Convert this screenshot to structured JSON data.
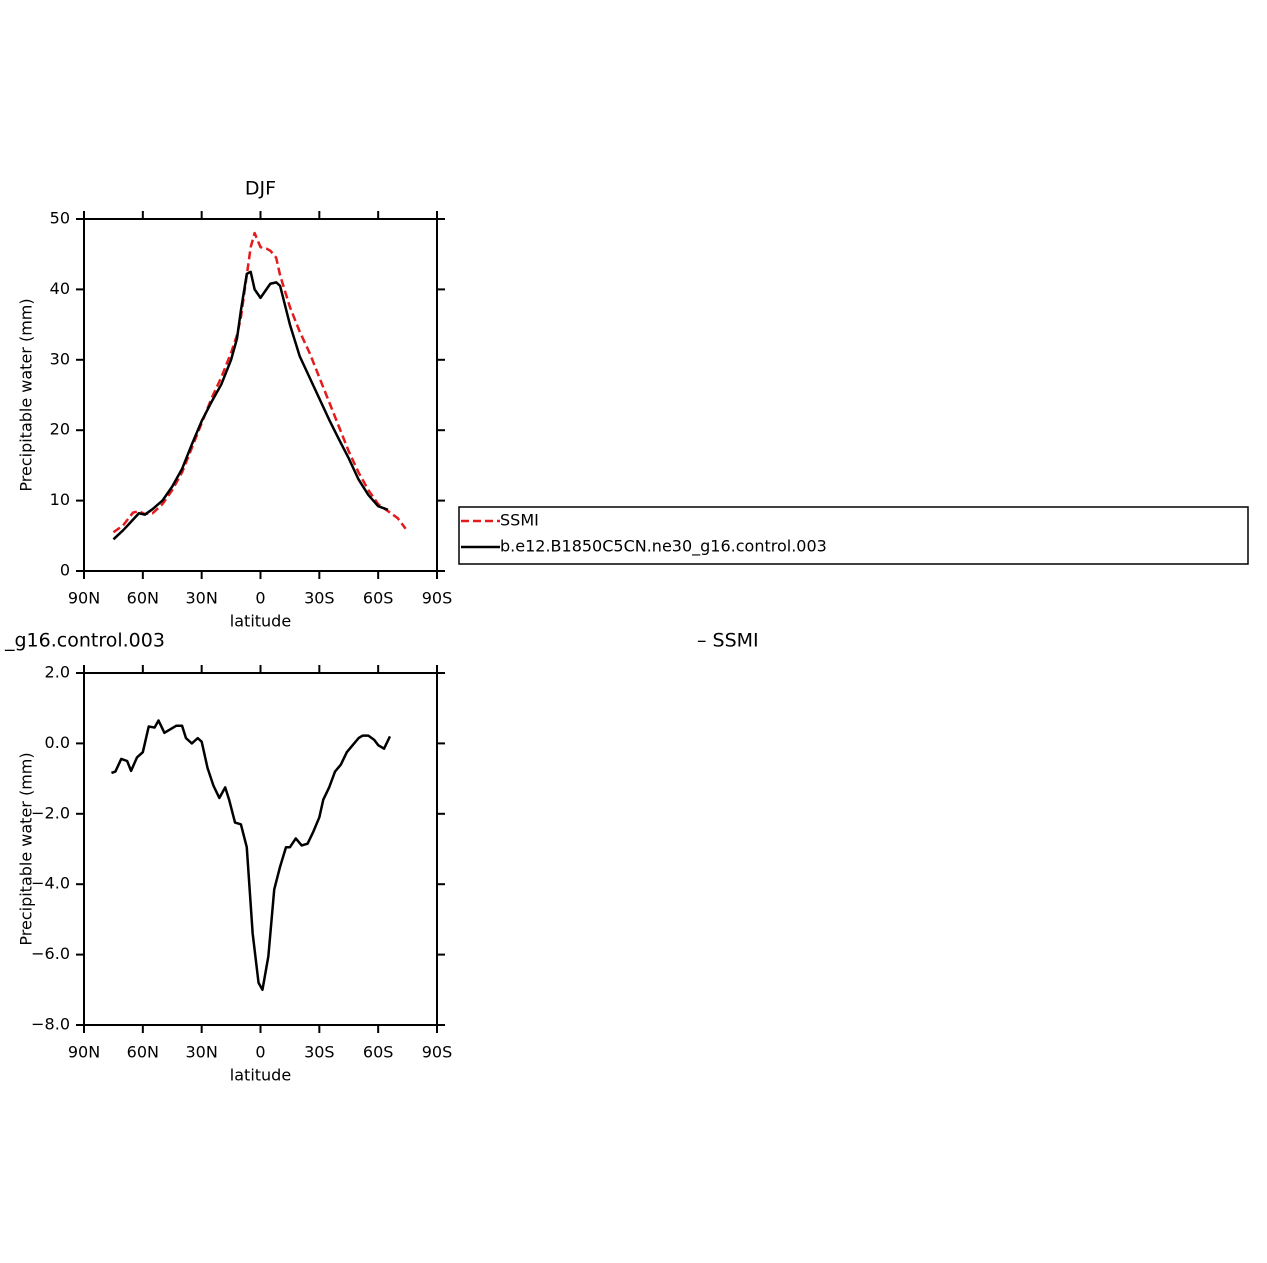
{
  "chart_data": [
    {
      "type": "line",
      "title": "DJF",
      "xlabel": "latitude",
      "ylabel": "Precipitable water (mm)",
      "x": [
        75,
        70,
        65,
        62,
        59,
        55,
        50,
        45,
        40,
        35,
        30,
        25,
        20,
        15,
        12,
        10,
        7,
        5,
        3,
        0,
        -3,
        -5,
        -8,
        -10,
        -15,
        -20,
        -25,
        -30,
        -35,
        -40,
        -45,
        -50,
        -55,
        -60,
        -65,
        -70,
        -74
      ],
      "series": [
        {
          "name": "SSMI",
          "color": "#e41a1c",
          "dashed": true,
          "values": [
            5.5,
            6.5,
            8.3,
            8.5,
            8.1,
            8.2,
            9.5,
            11.5,
            14,
            17.5,
            21,
            24.5,
            27.5,
            31,
            33.5,
            36,
            42,
            46,
            48,
            46,
            45.8,
            45.5,
            44.5,
            42,
            37.5,
            34,
            31,
            27.5,
            24,
            20.5,
            17,
            14,
            11.5,
            9.5,
            8.5,
            7.5,
            6
          ]
        },
        {
          "name": "b.e12.B1850C5CN.ne30_g16.control.003",
          "color": "#000000",
          "dashed": false,
          "values": [
            4.5,
            5.8,
            7.3,
            8.2,
            8,
            8.8,
            10,
            12,
            14.5,
            18,
            21.3,
            24,
            26.5,
            30,
            33,
            37,
            42.2,
            42.5,
            40,
            38.8,
            40,
            40.8,
            41,
            40.5,
            35,
            30.5,
            27.5,
            24.5,
            21.5,
            18.7,
            16,
            13,
            10.8,
            9.2,
            8.7,
            null,
            null
          ]
        }
      ],
      "xlim": [
        90,
        -90
      ],
      "xticks": [
        {
          "value": 90,
          "label": "90N"
        },
        {
          "value": 60,
          "label": "60N"
        },
        {
          "value": 30,
          "label": "30N"
        },
        0,
        {
          "value": -30,
          "label": "30S"
        },
        {
          "value": -60,
          "label": "60S"
        },
        {
          "value": -90,
          "label": "90S"
        }
      ],
      "ylim": [
        0,
        50
      ],
      "yticks": [
        0,
        10,
        20,
        30,
        40,
        50
      ],
      "legend": "right"
    },
    {
      "type": "line",
      "title": "_g16.control.003",
      "right_title": "– SSMI",
      "xlabel": "latitude",
      "ylabel": "Precipitable water (mm)",
      "x": [
        76,
        74,
        71,
        68,
        66,
        63,
        60,
        57,
        54,
        52,
        49,
        46,
        43,
        40,
        38,
        35,
        32,
        30,
        27,
        24,
        21,
        18,
        16,
        13,
        10,
        7,
        4,
        1,
        -1,
        -4,
        -7,
        -10,
        -13,
        -15,
        -18,
        -21,
        -24,
        -27,
        -30,
        -32,
        -35,
        -38,
        -41,
        -44,
        -47,
        -50,
        -52,
        -55,
        -58,
        -60,
        -63,
        -66
      ],
      "series": [
        {
          "color": "#000000",
          "dashed": false,
          "values": [
            -0.84,
            -0.8,
            -0.44,
            -0.5,
            -0.78,
            -0.4,
            -0.25,
            0.48,
            0.45,
            0.65,
            0.3,
            0.4,
            0.5,
            0.5,
            0.15,
            0.0,
            0.15,
            0.05,
            -0.7,
            -1.2,
            -1.55,
            -1.25,
            -1.6,
            -2.25,
            -2.3,
            -2.95,
            -5.4,
            -6.8,
            -7.0,
            -6.05,
            -4.15,
            -3.5,
            -2.95,
            -2.95,
            -2.7,
            -2.9,
            -2.85,
            -2.5,
            -2.1,
            -1.6,
            -1.25,
            -0.8,
            -0.6,
            -0.25,
            -0.05,
            0.15,
            0.22,
            0.22,
            0.1,
            -0.05,
            -0.15,
            0.2
          ]
        }
      ],
      "xlim": [
        90,
        -90
      ],
      "xticks": [
        {
          "value": 90,
          "label": "90N"
        },
        {
          "value": 60,
          "label": "60N"
        },
        {
          "value": 30,
          "label": "30N"
        },
        0,
        {
          "value": -30,
          "label": "30S"
        },
        {
          "value": -60,
          "label": "60S"
        },
        {
          "value": -90,
          "label": "90S"
        }
      ],
      "ylim": [
        -8,
        2
      ],
      "yticks": [
        {
          "value": -8,
          "label": "−8.0"
        },
        {
          "value": -6,
          "label": "−6.0"
        },
        {
          "value": -4,
          "label": "−4.0"
        },
        {
          "value": -2,
          "label": "−2.0"
        },
        {
          "value": 0,
          "label": "0.0"
        },
        {
          "value": 2,
          "label": "2.0"
        }
      ]
    }
  ]
}
